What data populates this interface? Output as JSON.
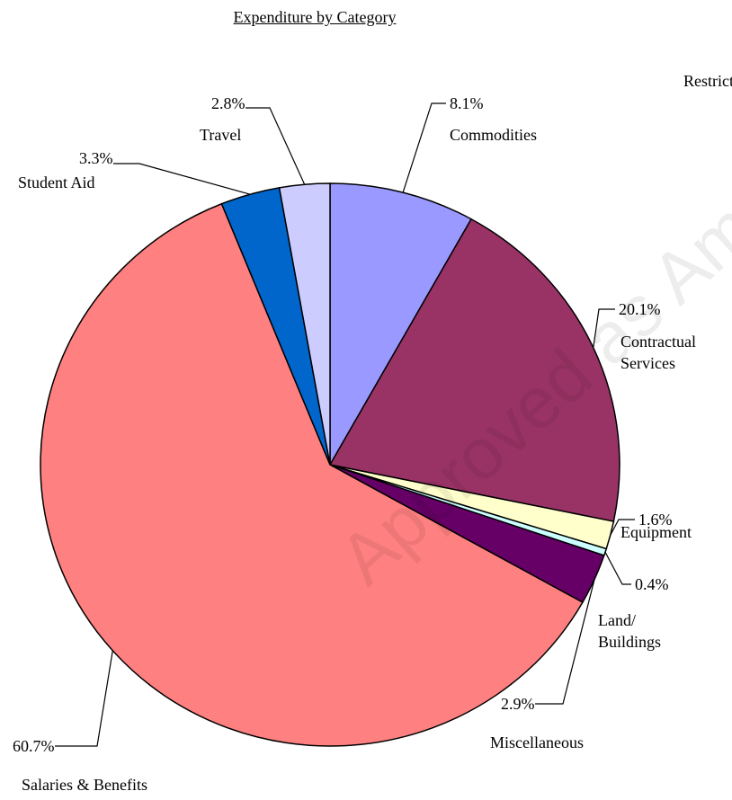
{
  "chart_data": {
    "type": "pie",
    "title": "Expenditure by Category",
    "corner_note": "Restricted",
    "watermark": "Approved as Ammended",
    "categories": [
      "Commodities",
      "Contractual Services",
      "Equipment",
      "Land/ Buildings",
      "Miscellaneous",
      "Salaries & Benefits",
      "Student Aid",
      "Travel"
    ],
    "values": [
      8.1,
      20.1,
      1.6,
      0.4,
      2.9,
      60.7,
      3.3,
      2.8
    ],
    "value_labels": [
      "8.1%",
      "20.1%",
      "1.6%",
      "0.4%",
      "2.9%",
      "60.7%",
      "3.3%",
      "2.8%"
    ],
    "colors": [
      "#9999ff",
      "#993366",
      "#ffffcc",
      "#ccffff",
      "#660066",
      "#ff8080",
      "#0066cc",
      "#ccccff"
    ]
  }
}
